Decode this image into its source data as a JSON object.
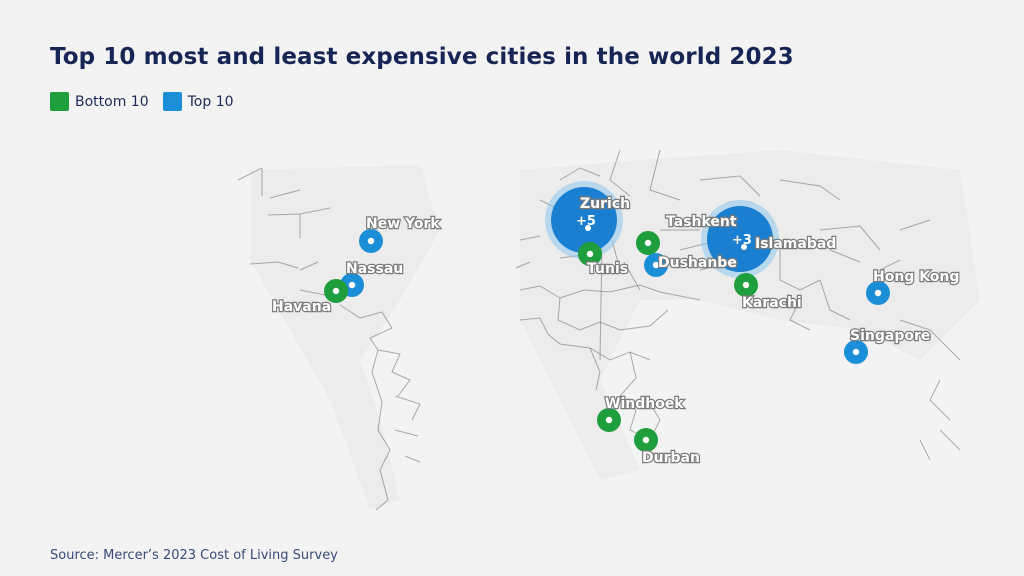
{
  "title": "Top 10 most and least expensive cities in the world 2023",
  "legend": {
    "bottom": {
      "label": "Bottom 10",
      "color": "#1e9e3c"
    },
    "top": {
      "label": "Top 10",
      "color": "#1a8fd8"
    }
  },
  "source": "Source: Mercer’s 2023 Cost of Living Survey",
  "cities": [
    {
      "name": "New York",
      "group": "top"
    },
    {
      "name": "Nassau",
      "group": "top"
    },
    {
      "name": "Havana",
      "group": "bottom"
    },
    {
      "name": "Zurich",
      "group": "top",
      "cluster_count": "5"
    },
    {
      "name": "Tunis",
      "group": "bottom"
    },
    {
      "name": "Tashkent",
      "group": "bottom"
    },
    {
      "name": "Dushanbe",
      "group": "top"
    },
    {
      "name": "Islamabad",
      "group": "bottom",
      "cluster_count": "3"
    },
    {
      "name": "Karachi",
      "group": "bottom"
    },
    {
      "name": "Hong Kong",
      "group": "top"
    },
    {
      "name": "Singapore",
      "group": "top"
    },
    {
      "name": "Windhoek",
      "group": "bottom"
    },
    {
      "name": "Durban",
      "group": "bottom"
    }
  ]
}
